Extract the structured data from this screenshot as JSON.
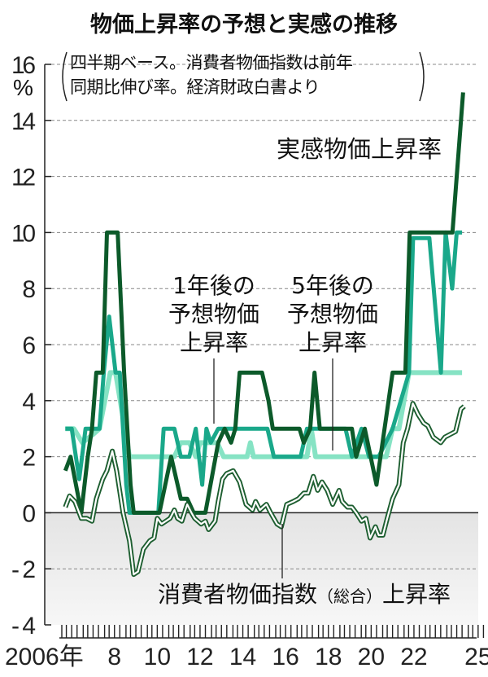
{
  "title": "物価上昇率の予想と実感の推移",
  "note": {
    "line1": "四半期ベース。消費者物価指数は前年",
    "line2": "同期比伸び率。経済財政白書より"
  },
  "labels": {
    "actual": "実感物価上昇率",
    "one_year": [
      "1年後の",
      "予想物価",
      "上昇率"
    ],
    "five_year": [
      "5年後の",
      "予想物価",
      "上昇率"
    ],
    "cpi_pre": "消費者物価指数",
    "cpi_paren": "（総合）",
    "cpi_post": "上昇率"
  },
  "chart_data": {
    "type": "line",
    "title": "物価上昇率の予想と実感の推移",
    "ylabel": "%",
    "ylim": [
      -4,
      16
    ],
    "yticks": [
      -4,
      -2,
      0,
      2,
      4,
      6,
      8,
      10,
      12,
      14,
      16
    ],
    "xlim": [
      2006,
      2025.5
    ],
    "xtick_labels": [
      {
        "year": 2006,
        "label": "2006年"
      },
      {
        "year": 2008,
        "label": "8"
      },
      {
        "year": 2010,
        "label": "10"
      },
      {
        "year": 2012,
        "label": "12"
      },
      {
        "year": 2014,
        "label": "14"
      },
      {
        "year": 2016,
        "label": "16"
      },
      {
        "year": 2018,
        "label": "18"
      },
      {
        "year": 2020,
        "label": "20"
      },
      {
        "year": 2022,
        "label": "22"
      },
      {
        "year": 2025,
        "label": "25"
      }
    ],
    "grid": true,
    "negative_region_shaded": true,
    "colors": {
      "actual": "#0c5a2a",
      "one_year": "#1aa88a",
      "five_year": "#86e3c4",
      "cpi": "#1d5e30",
      "shade": "#ececec"
    },
    "series": [
      {
        "name": "5年後の予想物価上昇率",
        "key": "five_year",
        "points": [
          [
            2006.2,
            3
          ],
          [
            2006.6,
            3
          ],
          [
            2007.0,
            2.5
          ],
          [
            2007.5,
            2.8
          ],
          [
            2007.8,
            3
          ],
          [
            2008.3,
            5
          ],
          [
            2008.55,
            5
          ],
          [
            2009.2,
            2
          ],
          [
            2011.3,
            2
          ],
          [
            2011.6,
            2.5
          ],
          [
            2012.0,
            2.5
          ],
          [
            2012.3,
            2
          ],
          [
            2012.5,
            2.5
          ],
          [
            2013.3,
            2.5
          ],
          [
            2013.6,
            2
          ],
          [
            2014.7,
            2
          ],
          [
            2014.85,
            2.5
          ],
          [
            2015.0,
            2
          ],
          [
            2017.5,
            2
          ],
          [
            2017.7,
            3
          ],
          [
            2017.9,
            2
          ],
          [
            2021.2,
            2
          ],
          [
            2021.5,
            3
          ],
          [
            2021.8,
            3
          ],
          [
            2022.27,
            5
          ],
          [
            2024.75,
            5
          ]
        ]
      },
      {
        "name": "1年後の予想物価上昇率",
        "key": "one_year",
        "points": [
          [
            2006.2,
            3
          ],
          [
            2006.5,
            3
          ],
          [
            2006.85,
            1.2
          ],
          [
            2007.15,
            3
          ],
          [
            2007.8,
            3
          ],
          [
            2008.0,
            5
          ],
          [
            2008.25,
            7
          ],
          [
            2008.55,
            5
          ],
          [
            2008.75,
            5
          ],
          [
            2009.05,
            1
          ],
          [
            2009.2,
            0
          ],
          [
            2010.55,
            0
          ],
          [
            2010.8,
            3
          ],
          [
            2011.3,
            3
          ],
          [
            2011.6,
            2
          ],
          [
            2012.0,
            2
          ],
          [
            2012.3,
            3
          ],
          [
            2012.6,
            1
          ],
          [
            2012.8,
            3
          ],
          [
            2013.0,
            2.5
          ],
          [
            2013.35,
            3
          ],
          [
            2015.65,
            3
          ],
          [
            2015.95,
            2
          ],
          [
            2017.2,
            2
          ],
          [
            2017.5,
            3
          ],
          [
            2019.3,
            3
          ],
          [
            2019.6,
            2
          ],
          [
            2020.05,
            3
          ],
          [
            2020.4,
            2
          ],
          [
            2020.85,
            2
          ],
          [
            2021.5,
            3
          ],
          [
            2022.27,
            5
          ],
          [
            2022.46,
            9.8
          ],
          [
            2023.22,
            9.8
          ],
          [
            2023.76,
            5
          ],
          [
            2023.98,
            10
          ],
          [
            2024.29,
            8
          ],
          [
            2024.5,
            10
          ],
          [
            2024.75,
            10
          ]
        ]
      },
      {
        "name": "実感物価上昇率",
        "key": "actual",
        "points": [
          [
            2006.2,
            1.5
          ],
          [
            2006.45,
            2
          ],
          [
            2006.95,
            0
          ],
          [
            2007.25,
            2
          ],
          [
            2007.45,
            3
          ],
          [
            2007.65,
            5
          ],
          [
            2007.95,
            5
          ],
          [
            2008.15,
            10
          ],
          [
            2008.65,
            10
          ],
          [
            2008.95,
            5
          ],
          [
            2009.25,
            1
          ],
          [
            2009.4,
            0
          ],
          [
            2010.6,
            0
          ],
          [
            2011.15,
            2
          ],
          [
            2011.6,
            0.5
          ],
          [
            2011.9,
            0.5
          ],
          [
            2012.2,
            0
          ],
          [
            2012.75,
            0
          ],
          [
            2013.35,
            2.5
          ],
          [
            2013.65,
            3
          ],
          [
            2013.95,
            2.5
          ],
          [
            2014.15,
            3
          ],
          [
            2014.35,
            5
          ],
          [
            2015.4,
            5
          ],
          [
            2015.7,
            4
          ],
          [
            2015.9,
            3
          ],
          [
            2017.15,
            3
          ],
          [
            2017.35,
            2.5
          ],
          [
            2017.65,
            3
          ],
          [
            2017.85,
            5
          ],
          [
            2018.1,
            3
          ],
          [
            2019.6,
            3
          ],
          [
            2019.8,
            2
          ],
          [
            2020.2,
            3
          ],
          [
            2020.75,
            1
          ],
          [
            2021.5,
            5
          ],
          [
            2022.1,
            5
          ],
          [
            2022.3,
            10
          ],
          [
            2024.3,
            10
          ],
          [
            2024.8,
            15
          ]
        ]
      },
      {
        "name": "消費者物価指数（総合）上昇率",
        "key": "cpi",
        "points": [
          [
            2006.2,
            0.2
          ],
          [
            2006.4,
            0.6
          ],
          [
            2006.65,
            0.4
          ],
          [
            2006.95,
            -0.2
          ],
          [
            2007.2,
            -0.2
          ],
          [
            2007.45,
            -0.3
          ],
          [
            2007.65,
            0.5
          ],
          [
            2007.95,
            1.2
          ],
          [
            2008.15,
            1.5
          ],
          [
            2008.4,
            2.2
          ],
          [
            2008.6,
            1.5
          ],
          [
            2008.9,
            0
          ],
          [
            2009.2,
            -1
          ],
          [
            2009.4,
            -2.2
          ],
          [
            2009.6,
            -2.1
          ],
          [
            2009.85,
            -1.3
          ],
          [
            2010.15,
            -1
          ],
          [
            2010.35,
            -0.9
          ],
          [
            2010.5,
            -0.2
          ],
          [
            2010.7,
            -0.4
          ],
          [
            2011.1,
            -0.2
          ],
          [
            2011.3,
            0.1
          ],
          [
            2011.45,
            -0.2
          ],
          [
            2011.65,
            -0.3
          ],
          [
            2011.9,
            0.3
          ],
          [
            2012.1,
            0
          ],
          [
            2012.25,
            -0.2
          ],
          [
            2012.55,
            -0.4
          ],
          [
            2012.75,
            -0.3
          ],
          [
            2012.9,
            -0.6
          ],
          [
            2013.2,
            -0.3
          ],
          [
            2013.35,
            0.4
          ],
          [
            2013.55,
            1.2
          ],
          [
            2013.75,
            1.4
          ],
          [
            2014.05,
            1.5
          ],
          [
            2014.35,
            1.1
          ],
          [
            2014.65,
            0.3
          ],
          [
            2014.95,
            0.1
          ],
          [
            2015.1,
            0.4
          ],
          [
            2015.3,
            0.1
          ],
          [
            2015.6,
            0.3
          ],
          [
            2015.8,
            0
          ],
          [
            2016.1,
            -0.4
          ],
          [
            2016.3,
            -0.5
          ],
          [
            2016.55,
            0.3
          ],
          [
            2016.85,
            0.4
          ],
          [
            2017.1,
            0.5
          ],
          [
            2017.35,
            0.7
          ],
          [
            2017.55,
            0.7
          ],
          [
            2017.8,
            1.3
          ],
          [
            2018.0,
            0.8
          ],
          [
            2018.2,
            1.1
          ],
          [
            2018.45,
            0.8
          ],
          [
            2018.7,
            0.3
          ],
          [
            2019.0,
            0.8
          ],
          [
            2019.15,
            0.4
          ],
          [
            2019.4,
            0.2
          ],
          [
            2019.6,
            0.2
          ],
          [
            2019.8,
            0
          ],
          [
            2020.05,
            -0.3
          ],
          [
            2020.25,
            -0.2
          ],
          [
            2020.45,
            -0.9
          ],
          [
            2020.7,
            -0.5
          ],
          [
            2020.85,
            -0.8
          ],
          [
            2021.05,
            -0.8
          ],
          [
            2021.25,
            -0.2
          ],
          [
            2021.5,
            0.5
          ],
          [
            2021.8,
            1
          ],
          [
            2022.0,
            2.5
          ],
          [
            2022.2,
            3
          ],
          [
            2022.45,
            3.9
          ],
          [
            2022.7,
            3.5
          ],
          [
            2022.95,
            3.2
          ],
          [
            2023.15,
            3.1
          ],
          [
            2023.4,
            2.7
          ],
          [
            2023.75,
            2.5
          ],
          [
            2023.95,
            2.7
          ],
          [
            2024.45,
            2.9
          ],
          [
            2024.7,
            3.7
          ],
          [
            2024.85,
            3.8
          ]
        ]
      }
    ]
  }
}
